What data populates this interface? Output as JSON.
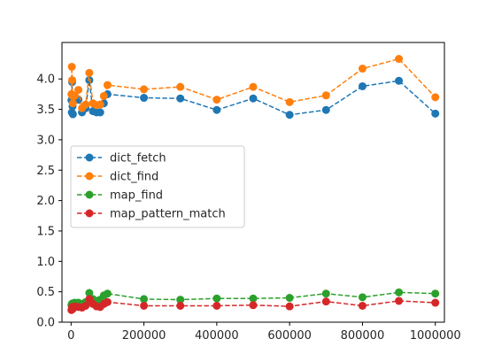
{
  "chart_data": {
    "type": "line",
    "title": "",
    "xlabel": "",
    "ylabel": "",
    "xlim": [
      -25000,
      1025000
    ],
    "ylim": [
      0.0,
      4.6
    ],
    "x_ticks": [
      0,
      200000,
      400000,
      600000,
      800000,
      1000000
    ],
    "x_tick_labels": [
      "0",
      "200000",
      "400000",
      "600000",
      "800000",
      "1000000"
    ],
    "y_ticks": [
      0.0,
      0.5,
      1.0,
      1.5,
      2.0,
      2.5,
      3.0,
      3.5,
      4.0
    ],
    "y_tick_labels": [
      "0.0",
      "0.5",
      "1.0",
      "1.5",
      "2.0",
      "2.5",
      "3.0",
      "3.5",
      "4.0"
    ],
    "grid": false,
    "legend_position": "center-left",
    "series": [
      {
        "name": "dict_fetch",
        "color": "#1f77b4",
        "points": [
          [
            1000,
            3.65
          ],
          [
            2000,
            3.45
          ],
          [
            3000,
            3.95
          ],
          [
            4000,
            3.55
          ],
          [
            5000,
            3.42
          ],
          [
            10000,
            3.72
          ],
          [
            20000,
            3.66
          ],
          [
            30000,
            3.45
          ],
          [
            40000,
            3.52
          ],
          [
            50000,
            3.98
          ],
          [
            60000,
            3.47
          ],
          [
            70000,
            3.45
          ],
          [
            80000,
            3.45
          ],
          [
            90000,
            3.6
          ],
          [
            100000,
            3.75
          ],
          [
            200000,
            3.69
          ],
          [
            300000,
            3.68
          ],
          [
            400000,
            3.49
          ],
          [
            500000,
            3.68
          ],
          [
            600000,
            3.41
          ],
          [
            700000,
            3.49
          ],
          [
            800000,
            3.88
          ],
          [
            900000,
            3.97
          ],
          [
            1000000,
            3.43
          ]
        ]
      },
      {
        "name": "dict_find",
        "color": "#ff7f0e",
        "points": [
          [
            1000,
            3.75
          ],
          [
            2000,
            4.2
          ],
          [
            3000,
            3.98
          ],
          [
            4000,
            3.72
          ],
          [
            5000,
            3.6
          ],
          [
            10000,
            3.72
          ],
          [
            20000,
            3.82
          ],
          [
            30000,
            3.52
          ],
          [
            40000,
            3.58
          ],
          [
            50000,
            4.1
          ],
          [
            60000,
            3.6
          ],
          [
            70000,
            3.57
          ],
          [
            80000,
            3.58
          ],
          [
            90000,
            3.72
          ],
          [
            100000,
            3.9
          ],
          [
            200000,
            3.83
          ],
          [
            300000,
            3.87
          ],
          [
            400000,
            3.66
          ],
          [
            500000,
            3.87
          ],
          [
            600000,
            3.62
          ],
          [
            700000,
            3.73
          ],
          [
            800000,
            4.17
          ],
          [
            900000,
            4.33
          ],
          [
            1000000,
            3.7
          ]
        ]
      },
      {
        "name": "map_find",
        "color": "#2ca02c",
        "points": [
          [
            1000,
            0.28
          ],
          [
            2000,
            0.3
          ],
          [
            3000,
            0.27
          ],
          [
            4000,
            0.31
          ],
          [
            5000,
            0.29
          ],
          [
            10000,
            0.32
          ],
          [
            20000,
            0.32
          ],
          [
            30000,
            0.3
          ],
          [
            40000,
            0.33
          ],
          [
            50000,
            0.48
          ],
          [
            60000,
            0.38
          ],
          [
            70000,
            0.35
          ],
          [
            80000,
            0.37
          ],
          [
            90000,
            0.44
          ],
          [
            100000,
            0.47
          ],
          [
            200000,
            0.38
          ],
          [
            300000,
            0.37
          ],
          [
            400000,
            0.39
          ],
          [
            500000,
            0.39
          ],
          [
            600000,
            0.4
          ],
          [
            700000,
            0.47
          ],
          [
            800000,
            0.41
          ],
          [
            900000,
            0.49
          ],
          [
            1000000,
            0.47
          ]
        ]
      },
      {
        "name": "map_pattern_match",
        "color": "#d62728",
        "points": [
          [
            1000,
            0.2
          ],
          [
            2000,
            0.22
          ],
          [
            3000,
            0.25
          ],
          [
            4000,
            0.24
          ],
          [
            5000,
            0.22
          ],
          [
            10000,
            0.26
          ],
          [
            20000,
            0.25
          ],
          [
            30000,
            0.24
          ],
          [
            40000,
            0.27
          ],
          [
            50000,
            0.38
          ],
          [
            60000,
            0.3
          ],
          [
            70000,
            0.26
          ],
          [
            80000,
            0.25
          ],
          [
            90000,
            0.3
          ],
          [
            100000,
            0.33
          ],
          [
            200000,
            0.27
          ],
          [
            300000,
            0.27
          ],
          [
            400000,
            0.27
          ],
          [
            500000,
            0.28
          ],
          [
            600000,
            0.26
          ],
          [
            700000,
            0.34
          ],
          [
            800000,
            0.27
          ],
          [
            900000,
            0.35
          ],
          [
            1000000,
            0.32
          ]
        ]
      }
    ]
  }
}
